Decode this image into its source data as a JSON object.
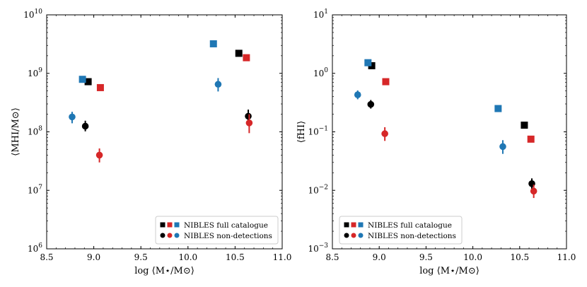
{
  "colors": {
    "black": "#000000",
    "red": "#d62728",
    "blue": "#1f77b4"
  },
  "chart_data": [
    {
      "type": "scatter",
      "title": "",
      "xlabel": "log ⟨M⋆/M⊙⟩",
      "ylabel": "⟨MHI/M⊙⟩",
      "yscale": "log",
      "xlim": [
        8.5,
        11.0
      ],
      "ylim_exp": [
        6,
        10
      ],
      "xticks": [
        "8.5",
        "9.0",
        "9.5",
        "10.0",
        "10.5",
        "11.0"
      ],
      "yticks": [
        {
          "base": "10",
          "exp": "6"
        },
        {
          "base": "10",
          "exp": "7"
        },
        {
          "base": "10",
          "exp": "8"
        },
        {
          "base": "10",
          "exp": "9"
        },
        {
          "base": "10",
          "exp": "10"
        }
      ],
      "legend_position": "lower-right",
      "legend": [
        "NIBLES full catalogue",
        "NIBLES non-detections"
      ],
      "series": [
        {
          "name": "NIBLES full catalogue",
          "marker": "square",
          "points": [
            {
              "x": 8.94,
              "y": 720000000.0,
              "color": "black"
            },
            {
              "x": 9.07,
              "y": 570000000.0,
              "color": "red"
            },
            {
              "x": 8.88,
              "y": 790000000.0,
              "color": "blue"
            },
            {
              "x": 10.54,
              "y": 2200000000.0,
              "color": "black"
            },
            {
              "x": 10.62,
              "y": 1850000000.0,
              "color": "red"
            },
            {
              "x": 10.27,
              "y": 3200000000.0,
              "color": "blue"
            }
          ]
        },
        {
          "name": "NIBLES non-detections",
          "marker": "circle",
          "points": [
            {
              "x": 8.91,
              "y": 125000000.0,
              "lo": 102000000.0,
              "hi": 155000000.0,
              "color": "black"
            },
            {
              "x": 9.06,
              "y": 40000000.0,
              "lo": 30000000.0,
              "hi": 52000000.0,
              "color": "red"
            },
            {
              "x": 8.77,
              "y": 180000000.0,
              "lo": 140000000.0,
              "hi": 220000000.0,
              "color": "blue"
            },
            {
              "x": 10.64,
              "y": 185000000.0,
              "lo": 150000000.0,
              "hi": 240000000.0,
              "color": "black"
            },
            {
              "x": 10.65,
              "y": 142000000.0,
              "lo": 95000000.0,
              "hi": 200000000.0,
              "color": "red"
            },
            {
              "x": 10.32,
              "y": 650000000.0,
              "lo": 490000000.0,
              "hi": 830000000.0,
              "color": "blue"
            }
          ]
        }
      ]
    },
    {
      "type": "scatter",
      "title": "",
      "xlabel": "log ⟨M⋆/M⊙⟩",
      "ylabel": "⟨fHI⟩",
      "yscale": "log",
      "xlim": [
        8.5,
        11.0
      ],
      "ylim_exp": [
        -3,
        1
      ],
      "xticks": [
        "8.5",
        "9.0",
        "9.5",
        "10.0",
        "10.5",
        "11.0"
      ],
      "yticks": [
        {
          "base": "10",
          "exp": "−3"
        },
        {
          "base": "10",
          "exp": "−2"
        },
        {
          "base": "10",
          "exp": "−1"
        },
        {
          "base": "10",
          "exp": "0"
        },
        {
          "base": "10",
          "exp": "1"
        }
      ],
      "legend_position": "lower-left",
      "legend": [
        "NIBLES full catalogue",
        "NIBLES non-detections"
      ],
      "series": [
        {
          "name": "NIBLES full catalogue",
          "marker": "square",
          "points": [
            {
              "x": 8.92,
              "y": 1.35,
              "color": "black"
            },
            {
              "x": 9.07,
              "y": 0.72,
              "color": "red"
            },
            {
              "x": 8.88,
              "y": 1.52,
              "color": "blue"
            },
            {
              "x": 10.55,
              "y": 0.13,
              "color": "black"
            },
            {
              "x": 10.62,
              "y": 0.075,
              "color": "red"
            },
            {
              "x": 10.27,
              "y": 0.25,
              "color": "blue"
            }
          ]
        },
        {
          "name": "NIBLES non-detections",
          "marker": "circle",
          "points": [
            {
              "x": 8.91,
              "y": 0.295,
              "lo": 0.25,
              "hi": 0.35,
              "color": "black"
            },
            {
              "x": 9.06,
              "y": 0.093,
              "lo": 0.07,
              "hi": 0.12,
              "color": "red"
            },
            {
              "x": 8.77,
              "y": 0.43,
              "lo": 0.36,
              "hi": 0.51,
              "color": "blue"
            },
            {
              "x": 10.63,
              "y": 0.013,
              "lo": 0.0105,
              "hi": 0.016,
              "color": "black"
            },
            {
              "x": 10.65,
              "y": 0.0097,
              "lo": 0.0074,
              "hi": 0.0125,
              "color": "red"
            },
            {
              "x": 10.32,
              "y": 0.056,
              "lo": 0.042,
              "hi": 0.072,
              "color": "blue"
            }
          ]
        }
      ]
    }
  ]
}
